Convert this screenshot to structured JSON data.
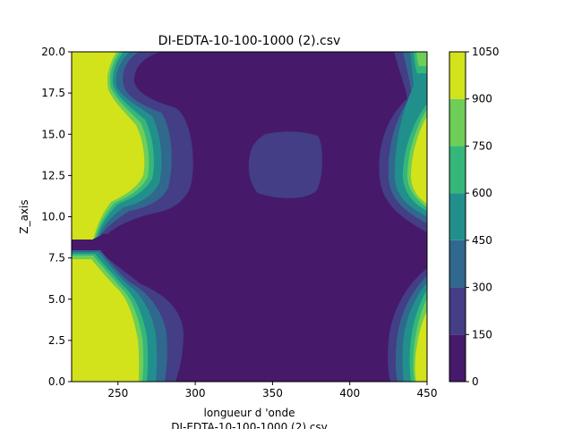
{
  "chart_data": {
    "type": "contourf",
    "title": "DI-EDTA-10-100-1000 (2).csv",
    "xlabel": "longueur d 'onde",
    "xlabel_secondary": "DI-EDTA-10-100-1000 (2).csv",
    "ylabel": "Z_axis",
    "xlim": [
      220,
      450
    ],
    "ylim": [
      0,
      20
    ],
    "x_ticks": [
      "250",
      "300",
      "350",
      "400",
      "450"
    ],
    "y_ticks": [
      "0.0",
      "2.5",
      "5.0",
      "7.5",
      "10.0",
      "12.5",
      "15.0",
      "17.5",
      "20.0"
    ],
    "colorbar": {
      "levels": [
        0,
        150,
        300,
        450,
        600,
        750,
        900,
        1050
      ],
      "tick_labels": [
        "0",
        "150",
        "300",
        "450",
        "600",
        "750",
        "900",
        "1050"
      ],
      "colors": [
        "#46196b",
        "#433e85",
        "#30688e",
        "#21908d",
        "#35b779",
        "#6ece58",
        "#d2e21b"
      ]
    },
    "regions": [
      {
        "band": "900-1050",
        "approx_x": [
          220,
          265
        ],
        "approx_y": [
          0,
          7.0
        ],
        "note": "lower-left high region"
      },
      {
        "band": "900-1050",
        "approx_x": [
          220,
          265
        ],
        "approx_y": [
          8.5,
          20
        ],
        "note": "upper-left high region"
      },
      {
        "band": "900-1050",
        "approx_x": [
          440,
          450
        ],
        "approx_y": [
          0.5,
          5
        ],
        "note": "lower-right high region"
      },
      {
        "band": "900-1050",
        "approx_x": [
          440,
          450
        ],
        "approx_y": [
          11,
          15.5
        ],
        "note": "middle-right high region"
      },
      {
        "band": "150-300",
        "approx_x": [
          335,
          375
        ],
        "approx_y": [
          11.2,
          15.2
        ],
        "note": "central island"
      }
    ]
  }
}
